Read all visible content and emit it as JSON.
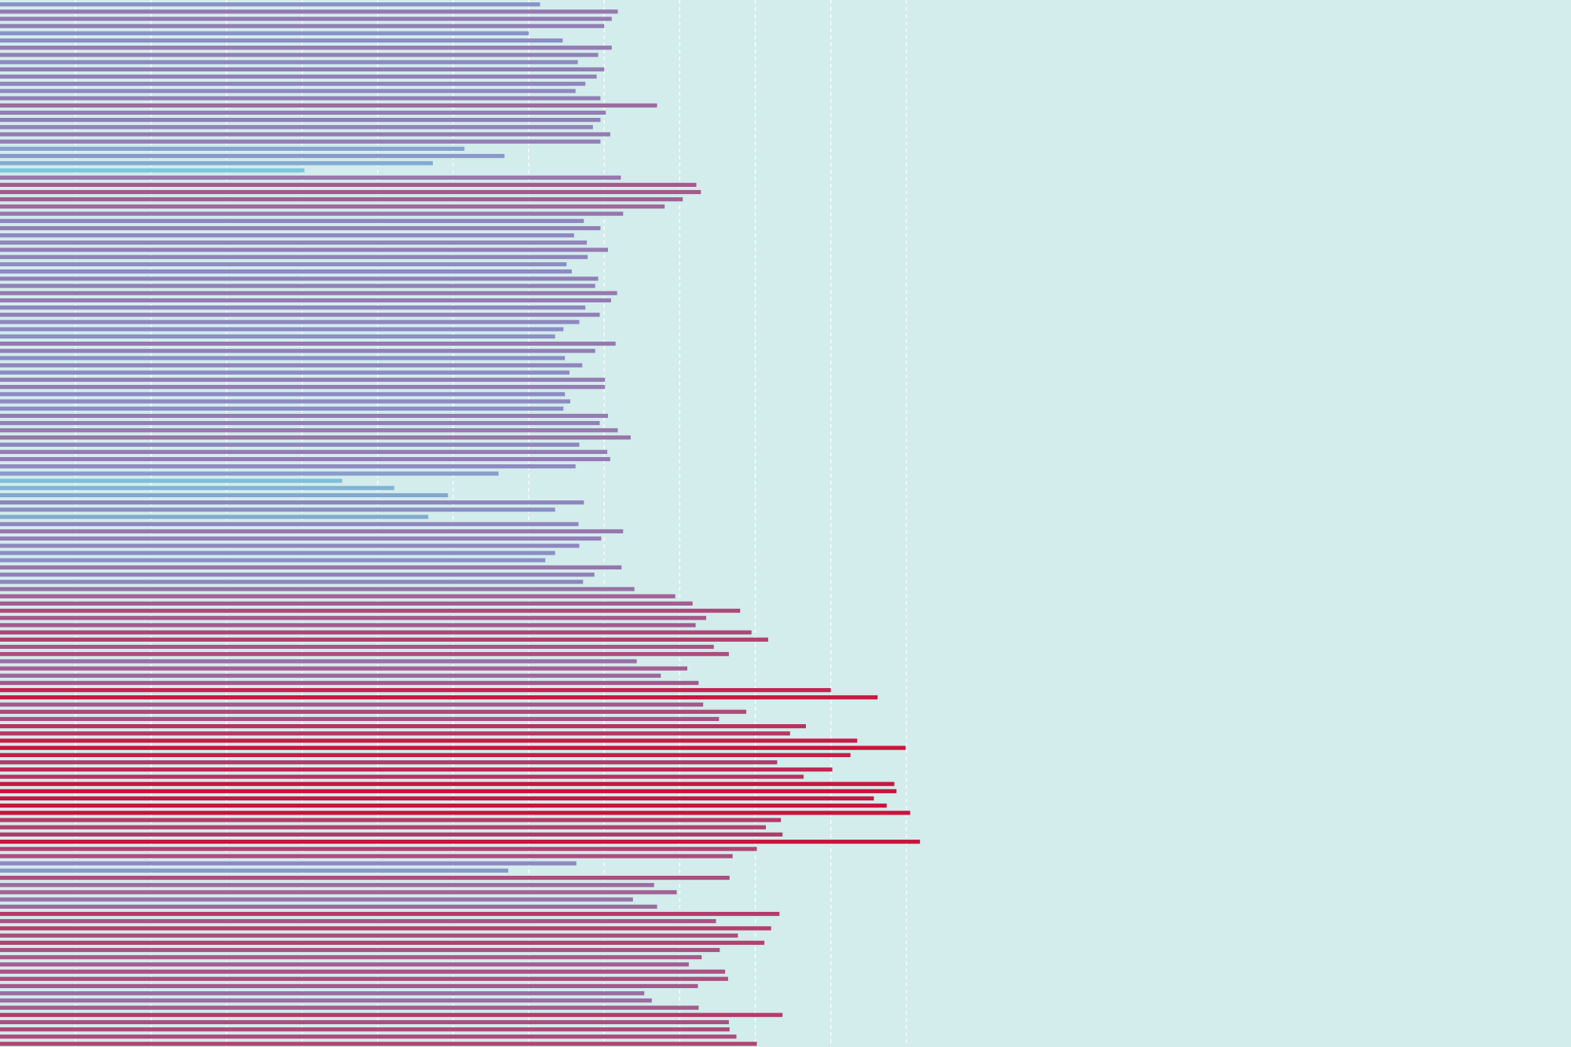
{
  "colors": {
    "background": "#d3ecec",
    "gridline": "#ffffff",
    "low": "#7bc8dc",
    "mid": "#8c8cc4",
    "high": "#c8143c"
  },
  "chart_data": {
    "type": "bar",
    "orientation": "horizontal",
    "title": "",
    "xlabel": "",
    "ylabel": "",
    "grid": true,
    "grid_style": "dashed",
    "legend": "none",
    "xlim": [
      0,
      20.8
    ],
    "gridlines_x": [
      1,
      2,
      3,
      4,
      5,
      6,
      7,
      8,
      9,
      10,
      11,
      12
    ],
    "values": [
      7.15,
      8.18,
      8.1,
      8.0,
      7.0,
      7.45,
      8.1,
      7.92,
      7.65,
      8.0,
      7.9,
      7.75,
      7.62,
      7.95,
      8.7,
      8.02,
      7.95,
      7.85,
      8.08,
      7.95,
      6.15,
      6.68,
      5.73,
      4.03,
      8.22,
      9.22,
      9.28,
      9.04,
      8.8,
      8.25,
      7.73,
      7.95,
      7.6,
      7.77,
      8.05,
      7.78,
      7.5,
      7.57,
      7.92,
      7.88,
      8.17,
      8.09,
      7.75,
      7.94,
      7.67,
      7.46,
      7.35,
      8.15,
      7.88,
      7.48,
      7.71,
      7.54,
      8.01,
      8.01,
      7.48,
      7.55,
      7.46,
      8.05,
      7.94,
      8.18,
      8.35,
      7.67,
      8.04,
      8.08,
      7.62,
      6.6,
      4.53,
      5.22,
      5.93,
      7.73,
      7.35,
      5.67,
      7.66,
      8.25,
      7.96,
      7.67,
      7.35,
      7.22,
      8.23,
      7.87,
      7.72,
      8.4,
      8.94,
      9.17,
      9.8,
      9.35,
      9.21,
      9.95,
      10.17,
      9.45,
      9.65,
      8.43,
      9.1,
      8.75,
      9.25,
      11.0,
      11.62,
      9.31,
      9.88,
      9.52,
      10.67,
      10.46,
      11.35,
      11.99,
      11.26,
      10.29,
      11.02,
      10.64,
      11.84,
      11.87,
      11.57,
      11.74,
      12.05,
      10.34,
      10.14,
      10.36,
      12.18,
      10.02,
      9.7,
      7.63,
      6.73,
      9.66,
      8.66,
      8.96,
      8.38,
      8.7,
      10.32,
      9.48,
      10.21,
      9.77,
      10.12,
      9.53,
      9.29,
      9.12,
      9.6,
      9.64,
      9.24,
      8.53,
      8.63,
      9.25,
      10.36,
      9.65,
      9.66,
      9.75,
      10.02
    ]
  }
}
